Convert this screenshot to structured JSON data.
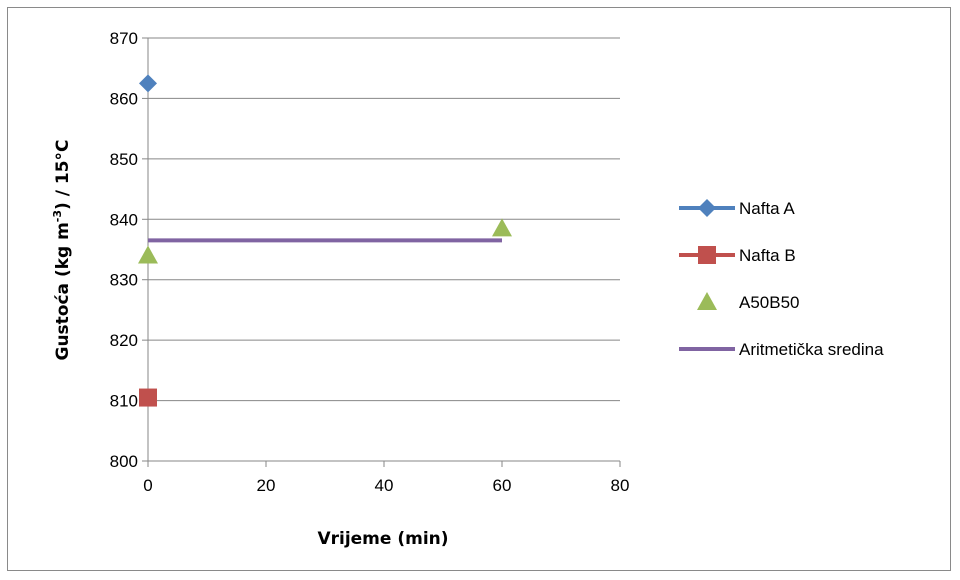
{
  "chart_data": {
    "type": "scatter",
    "xlabel": "Vrijeme (min)",
    "ylabel_parts": [
      "Gustoća (kg m",
      "-3",
      ") / 15°C"
    ],
    "xlim": [
      0,
      80
    ],
    "ylim": [
      800,
      870
    ],
    "x_ticks": [
      0,
      20,
      40,
      60,
      80
    ],
    "y_ticks": [
      800,
      810,
      820,
      830,
      840,
      850,
      860,
      870
    ],
    "grid": "horizontal",
    "legend_position": "right",
    "series": [
      {
        "name": "Nafta A",
        "type": "line-marker",
        "marker": "diamond",
        "color": "#4F81BD",
        "points": [
          [
            0,
            862.5
          ]
        ]
      },
      {
        "name": "Nafta B",
        "type": "line-marker",
        "marker": "square",
        "color": "#C0504D",
        "points": [
          [
            0,
            810.5
          ]
        ]
      },
      {
        "name": "A50B50",
        "type": "marker",
        "marker": "triangle",
        "color": "#9BBB59",
        "points": [
          [
            0,
            834
          ],
          [
            60,
            838.5
          ]
        ]
      },
      {
        "name": "Aritmetička sredina",
        "type": "line",
        "color": "#8064A2",
        "points": [
          [
            0,
            836.5
          ],
          [
            60,
            836.5
          ]
        ]
      }
    ]
  }
}
